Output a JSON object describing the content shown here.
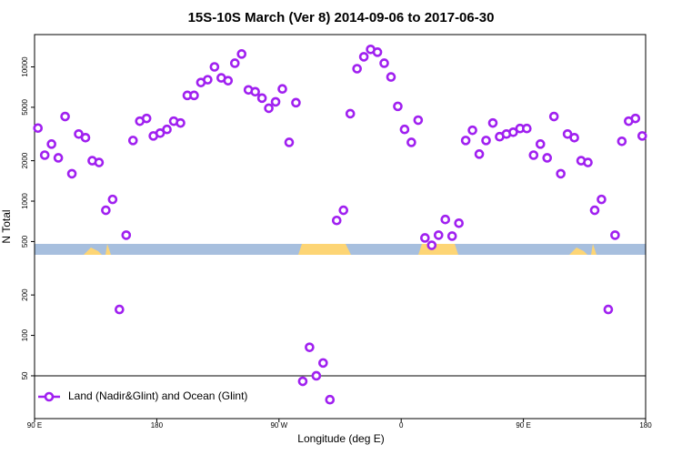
{
  "chart_data": {
    "type": "scatter",
    "title": "15S-10S March (Ver 8)   2014-09-06 to 2017-06-30",
    "x_label": "Longitude (deg E)",
    "y_label": "N Total",
    "log_y": true,
    "hline": 50,
    "legend_position": "bottom-left",
    "xlim": [
      90,
      540
    ],
    "xticks": [
      {
        "value": 90,
        "label": "90 E"
      },
      {
        "value": 180,
        "label": "180"
      },
      {
        "value": 270,
        "label": "90 W"
      },
      {
        "value": 360,
        "label": "0"
      },
      {
        "value": 450,
        "label": "90 E"
      },
      {
        "value": 540,
        "label": "180"
      }
    ],
    "ylim": [
      24,
      17400
    ],
    "yticks": [
      50,
      100,
      200,
      500,
      1000,
      2000,
      5000,
      10000
    ],
    "series": [
      {
        "name": "Land (Nadir&Glint) and Ocean (Glint)",
        "color": "#a020f0",
        "x": [
          92.5,
          97.5,
          102.5,
          107.5,
          112.5,
          117.5,
          122.5,
          127.5,
          132.5,
          137.5,
          142.5,
          147.5,
          152.5,
          157.5,
          162.5,
          167.5,
          172.5,
          177.5,
          182.5,
          187.5,
          192.5,
          197.5,
          202.5,
          207.5,
          212.5,
          217.5,
          222.5,
          227.5,
          232.5,
          237.5,
          242.5,
          247.5,
          252.5,
          257.5,
          262.5,
          267.5,
          272.5,
          277.5,
          282.5,
          287.5,
          292.5,
          297.5,
          302.5,
          307.5,
          312.5,
          317.5,
          322.5,
          327.5,
          332.5,
          337.5,
          342.5,
          347.5,
          352.5,
          357.5,
          362.5,
          367.5,
          372.5,
          377.5,
          382.5,
          387.5,
          392.5,
          397.5,
          402.5,
          407.5,
          412.5,
          417.5,
          422.5,
          427.5,
          432.5,
          437.5,
          442.5,
          447.5,
          452.5,
          457.5,
          462.5,
          467.5,
          472.5,
          477.5,
          482.5,
          487.5,
          492.5,
          497.5,
          502.5,
          507.5,
          512.5,
          517.5,
          522.5,
          527.5,
          532.5,
          537.5
        ],
        "values": [
          3500,
          2200,
          2660,
          2100,
          4270,
          1600,
          3160,
          2970,
          2000,
          1940,
          855,
          1030,
          156,
          558,
          2830,
          3940,
          4130,
          3060,
          3210,
          3420,
          3940,
          3820,
          6130,
          6130,
          7650,
          8020,
          10000,
          8280,
          7890,
          10650,
          12470,
          6740,
          6530,
          5850,
          4920,
          5490,
          6850,
          2740,
          5410,
          45.5,
          81.5,
          50,
          62.3,
          33.2,
          718,
          855,
          4480,
          9690,
          11890,
          13490,
          12870,
          10650,
          8410,
          5080,
          3420,
          2740,
          4010,
          532,
          469,
          558,
          730,
          549,
          685,
          2830,
          3370,
          2240,
          2830,
          3820,
          3020,
          3160,
          3260,
          3475,
          3475,
          2200,
          2660,
          2100,
          4270,
          1600,
          3160,
          2970,
          2000,
          1940,
          855,
          1030,
          156,
          558,
          2790,
          3940,
          4130,
          3060
        ]
      }
    ]
  }
}
